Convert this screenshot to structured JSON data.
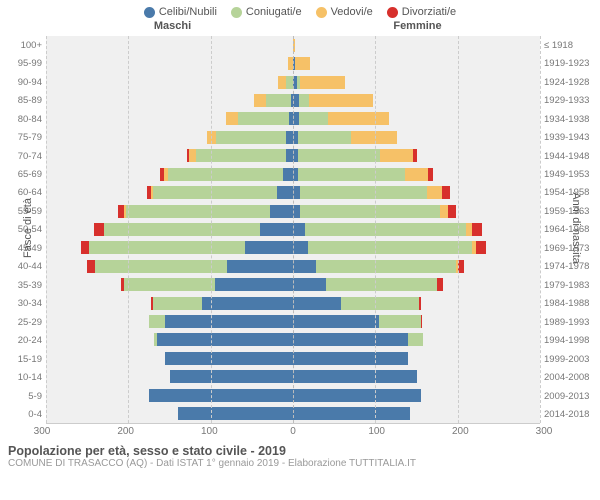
{
  "legend": [
    {
      "label": "Celibi/Nubili",
      "color": "#4a7aaa"
    },
    {
      "label": "Coniugati/e",
      "color": "#b6d399"
    },
    {
      "label": "Vedovi/e",
      "color": "#f6c167"
    },
    {
      "label": "Divorziati/e",
      "color": "#d7302c"
    }
  ],
  "headers": {
    "male": "Maschi",
    "female": "Femmine"
  },
  "y_left_title": "Fasce di età",
  "y_right_title": "Anni di nascita",
  "x_max": 300,
  "x_ticks": [
    300,
    200,
    100,
    0,
    100,
    200,
    300
  ],
  "footer_title": "Popolazione per età, sesso e stato civile - 2019",
  "footer_sub": "COMUNE DI TRASACCO (AQ) - Dati ISTAT 1° gennaio 2019 - Elaborazione TUTTITALIA.IT",
  "colors": {
    "single": "#4a7aaa",
    "married": "#b6d399",
    "widowed": "#f6c167",
    "divorced": "#d7302c"
  },
  "rows": [
    {
      "age": "100+",
      "birth": "≤ 1918",
      "m": {
        "s": 0,
        "c": 0,
        "w": 0,
        "d": 0
      },
      "f": {
        "s": 0,
        "c": 0,
        "w": 3,
        "d": 0
      }
    },
    {
      "age": "95-99",
      "birth": "1919-1923",
      "m": {
        "s": 0,
        "c": 0,
        "w": 6,
        "d": 0
      },
      "f": {
        "s": 3,
        "c": 0,
        "w": 18,
        "d": 0
      }
    },
    {
      "age": "90-94",
      "birth": "1924-1928",
      "m": {
        "s": 0,
        "c": 8,
        "w": 10,
        "d": 0
      },
      "f": {
        "s": 5,
        "c": 3,
        "w": 55,
        "d": 0
      }
    },
    {
      "age": "85-89",
      "birth": "1929-1933",
      "m": {
        "s": 3,
        "c": 30,
        "w": 15,
        "d": 0
      },
      "f": {
        "s": 7,
        "c": 12,
        "w": 78,
        "d": 0
      }
    },
    {
      "age": "80-84",
      "birth": "1934-1938",
      "m": {
        "s": 5,
        "c": 62,
        "w": 15,
        "d": 0
      },
      "f": {
        "s": 7,
        "c": 35,
        "w": 75,
        "d": 0
      }
    },
    {
      "age": "75-79",
      "birth": "1939-1943",
      "m": {
        "s": 8,
        "c": 85,
        "w": 12,
        "d": 0
      },
      "f": {
        "s": 6,
        "c": 65,
        "w": 55,
        "d": 0
      }
    },
    {
      "age": "70-74",
      "birth": "1944-1948",
      "m": {
        "s": 8,
        "c": 110,
        "w": 8,
        "d": 3
      },
      "f": {
        "s": 6,
        "c": 100,
        "w": 40,
        "d": 5
      }
    },
    {
      "age": "65-69",
      "birth": "1949-1953",
      "m": {
        "s": 12,
        "c": 140,
        "w": 5,
        "d": 4
      },
      "f": {
        "s": 6,
        "c": 130,
        "w": 28,
        "d": 6
      }
    },
    {
      "age": "60-64",
      "birth": "1954-1958",
      "m": {
        "s": 20,
        "c": 150,
        "w": 2,
        "d": 5
      },
      "f": {
        "s": 8,
        "c": 155,
        "w": 18,
        "d": 10
      }
    },
    {
      "age": "55-59",
      "birth": "1959-1963",
      "m": {
        "s": 28,
        "c": 175,
        "w": 2,
        "d": 7
      },
      "f": {
        "s": 8,
        "c": 170,
        "w": 10,
        "d": 10
      }
    },
    {
      "age": "50-54",
      "birth": "1964-1968",
      "m": {
        "s": 40,
        "c": 190,
        "w": 0,
        "d": 12
      },
      "f": {
        "s": 15,
        "c": 195,
        "w": 8,
        "d": 12
      }
    },
    {
      "age": "45-49",
      "birth": "1969-1973",
      "m": {
        "s": 58,
        "c": 190,
        "w": 0,
        "d": 10
      },
      "f": {
        "s": 18,
        "c": 200,
        "w": 4,
        "d": 12
      }
    },
    {
      "age": "40-44",
      "birth": "1974-1978",
      "m": {
        "s": 80,
        "c": 160,
        "w": 0,
        "d": 10
      },
      "f": {
        "s": 28,
        "c": 170,
        "w": 2,
        "d": 8
      }
    },
    {
      "age": "35-39",
      "birth": "1979-1983",
      "m": {
        "s": 95,
        "c": 110,
        "w": 0,
        "d": 4
      },
      "f": {
        "s": 40,
        "c": 135,
        "w": 0,
        "d": 7
      }
    },
    {
      "age": "30-34",
      "birth": "1984-1988",
      "m": {
        "s": 110,
        "c": 60,
        "w": 0,
        "d": 2
      },
      "f": {
        "s": 58,
        "c": 95,
        "w": 0,
        "d": 3
      }
    },
    {
      "age": "25-29",
      "birth": "1989-1993",
      "m": {
        "s": 155,
        "c": 20,
        "w": 0,
        "d": 0
      },
      "f": {
        "s": 105,
        "c": 50,
        "w": 0,
        "d": 2
      }
    },
    {
      "age": "20-24",
      "birth": "1994-1998",
      "m": {
        "s": 165,
        "c": 4,
        "w": 0,
        "d": 0
      },
      "f": {
        "s": 140,
        "c": 18,
        "w": 0,
        "d": 0
      }
    },
    {
      "age": "15-19",
      "birth": "1999-2003",
      "m": {
        "s": 155,
        "c": 0,
        "w": 0,
        "d": 0
      },
      "f": {
        "s": 140,
        "c": 0,
        "w": 0,
        "d": 0
      }
    },
    {
      "age": "10-14",
      "birth": "2004-2008",
      "m": {
        "s": 150,
        "c": 0,
        "w": 0,
        "d": 0
      },
      "f": {
        "s": 150,
        "c": 0,
        "w": 0,
        "d": 0
      }
    },
    {
      "age": "5-9",
      "birth": "2009-2013",
      "m": {
        "s": 175,
        "c": 0,
        "w": 0,
        "d": 0
      },
      "f": {
        "s": 155,
        "c": 0,
        "w": 0,
        "d": 0
      }
    },
    {
      "age": "0-4",
      "birth": "2014-2018",
      "m": {
        "s": 140,
        "c": 0,
        "w": 0,
        "d": 0
      },
      "f": {
        "s": 142,
        "c": 0,
        "w": 0,
        "d": 0
      }
    }
  ]
}
